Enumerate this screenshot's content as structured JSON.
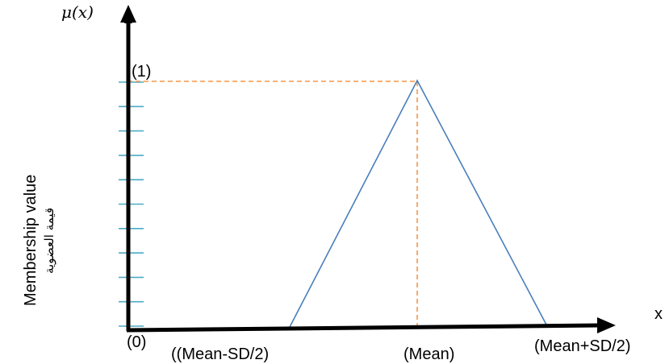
{
  "diagram": {
    "y_axis_symbol": "μ(x)",
    "y_axis_label_en": "Membership value",
    "y_axis_label_ar": "قيمة العضوية",
    "x_axis_symbol": "x",
    "origin_label": "(0)",
    "peak_label": "(1)",
    "x_labels": {
      "left": "((Mean-SD/2)",
      "center": "(Mean)",
      "right": "(Mean+SD/2)"
    },
    "colors": {
      "axis": "#000000",
      "triangle": "#4a7ebb",
      "guide": "#f79646",
      "ticks": "#4bacc6"
    }
  }
}
